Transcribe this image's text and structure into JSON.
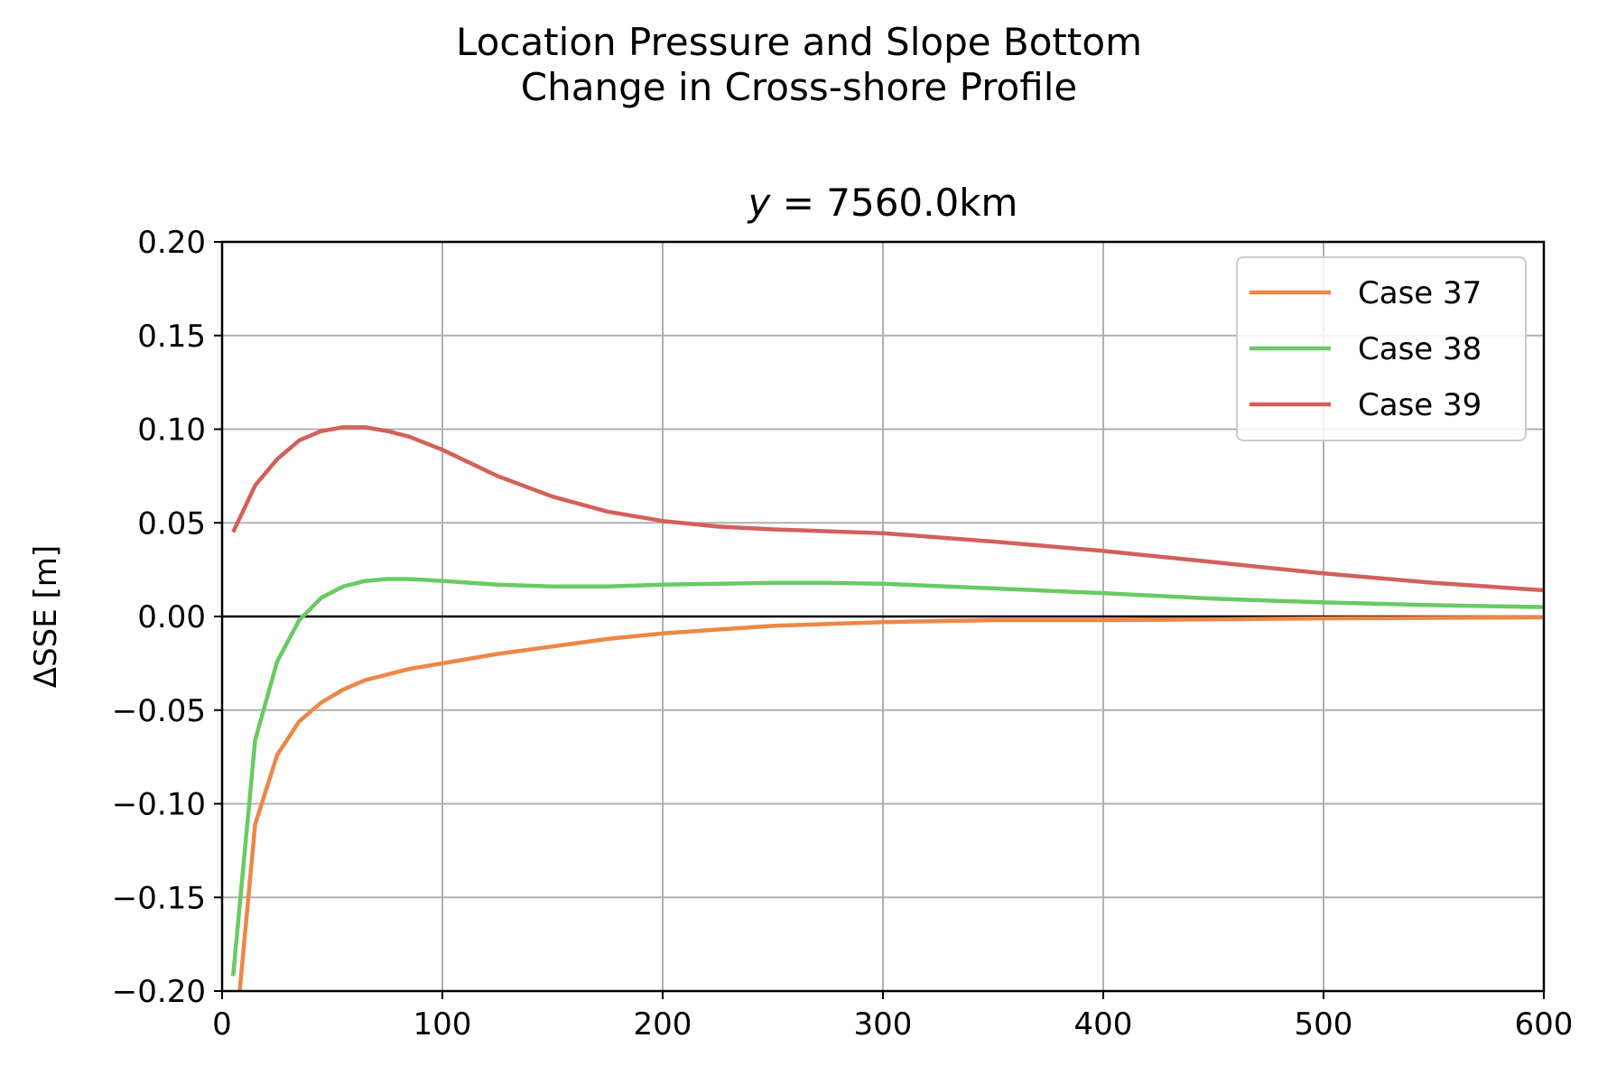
{
  "figure": {
    "suptitle_line1": "Location Pressure and Slope Bottom",
    "suptitle_line2": "Change in Cross-shore Profile"
  },
  "chart_data": {
    "type": "line",
    "title_var": "y",
    "title_rest": " = 7560.0km",
    "xlabel": "",
    "ylabel": "ΔSSE [m]",
    "xlim": [
      0,
      600
    ],
    "ylim": [
      -0.2,
      0.2
    ],
    "xticks": [
      0,
      100,
      200,
      300,
      400,
      500,
      600
    ],
    "xtick_labels": [
      "0",
      "100",
      "200",
      "300",
      "400",
      "500",
      "600"
    ],
    "yticks": [
      -0.2,
      -0.15,
      -0.1,
      -0.05,
      0.0,
      0.05,
      0.1,
      0.15,
      0.2
    ],
    "ytick_labels": [
      "−0.20",
      "−0.15",
      "−0.10",
      "−0.05",
      "0.00",
      "0.05",
      "0.10",
      "0.15",
      "0.20"
    ],
    "grid": true,
    "zero_line": true,
    "legend_position": "top-right",
    "series": [
      {
        "name": "Case 37",
        "color": "#ed8747",
        "x": [
          8,
          15,
          25,
          35,
          45,
          55,
          65,
          75,
          85,
          100,
          125,
          150,
          175,
          200,
          225,
          250,
          275,
          300,
          350,
          400,
          450,
          500,
          550,
          600
        ],
        "y": [
          -0.2,
          -0.111,
          -0.074,
          -0.056,
          -0.046,
          -0.039,
          -0.034,
          -0.031,
          -0.028,
          -0.025,
          -0.02,
          -0.016,
          -0.012,
          -0.009,
          -0.007,
          -0.005,
          -0.004,
          -0.003,
          -0.002,
          -0.002,
          -0.0015,
          -0.001,
          -0.0007,
          -0.0005
        ]
      },
      {
        "name": "Case 38",
        "color": "#6aca63",
        "x": [
          5,
          15,
          25,
          35,
          45,
          55,
          65,
          75,
          85,
          100,
          125,
          150,
          175,
          200,
          225,
          250,
          275,
          300,
          350,
          400,
          450,
          500,
          550,
          600
        ],
        "y": [
          -0.192,
          -0.066,
          -0.024,
          -0.002,
          0.01,
          0.016,
          0.019,
          0.02,
          0.02,
          0.019,
          0.017,
          0.016,
          0.016,
          0.017,
          0.0175,
          0.018,
          0.018,
          0.0175,
          0.015,
          0.0125,
          0.0095,
          0.0075,
          0.006,
          0.005
        ]
      },
      {
        "name": "Case 39",
        "color": "#d3605b",
        "x": [
          5,
          15,
          25,
          35,
          45,
          55,
          65,
          75,
          85,
          100,
          125,
          150,
          175,
          200,
          225,
          250,
          275,
          300,
          350,
          400,
          450,
          500,
          550,
          600
        ],
        "y": [
          0.045,
          0.07,
          0.084,
          0.094,
          0.099,
          0.101,
          0.101,
          0.099,
          0.096,
          0.089,
          0.075,
          0.064,
          0.056,
          0.051,
          0.048,
          0.0465,
          0.0455,
          0.0445,
          0.04,
          0.035,
          0.029,
          0.023,
          0.018,
          0.014
        ]
      }
    ]
  }
}
